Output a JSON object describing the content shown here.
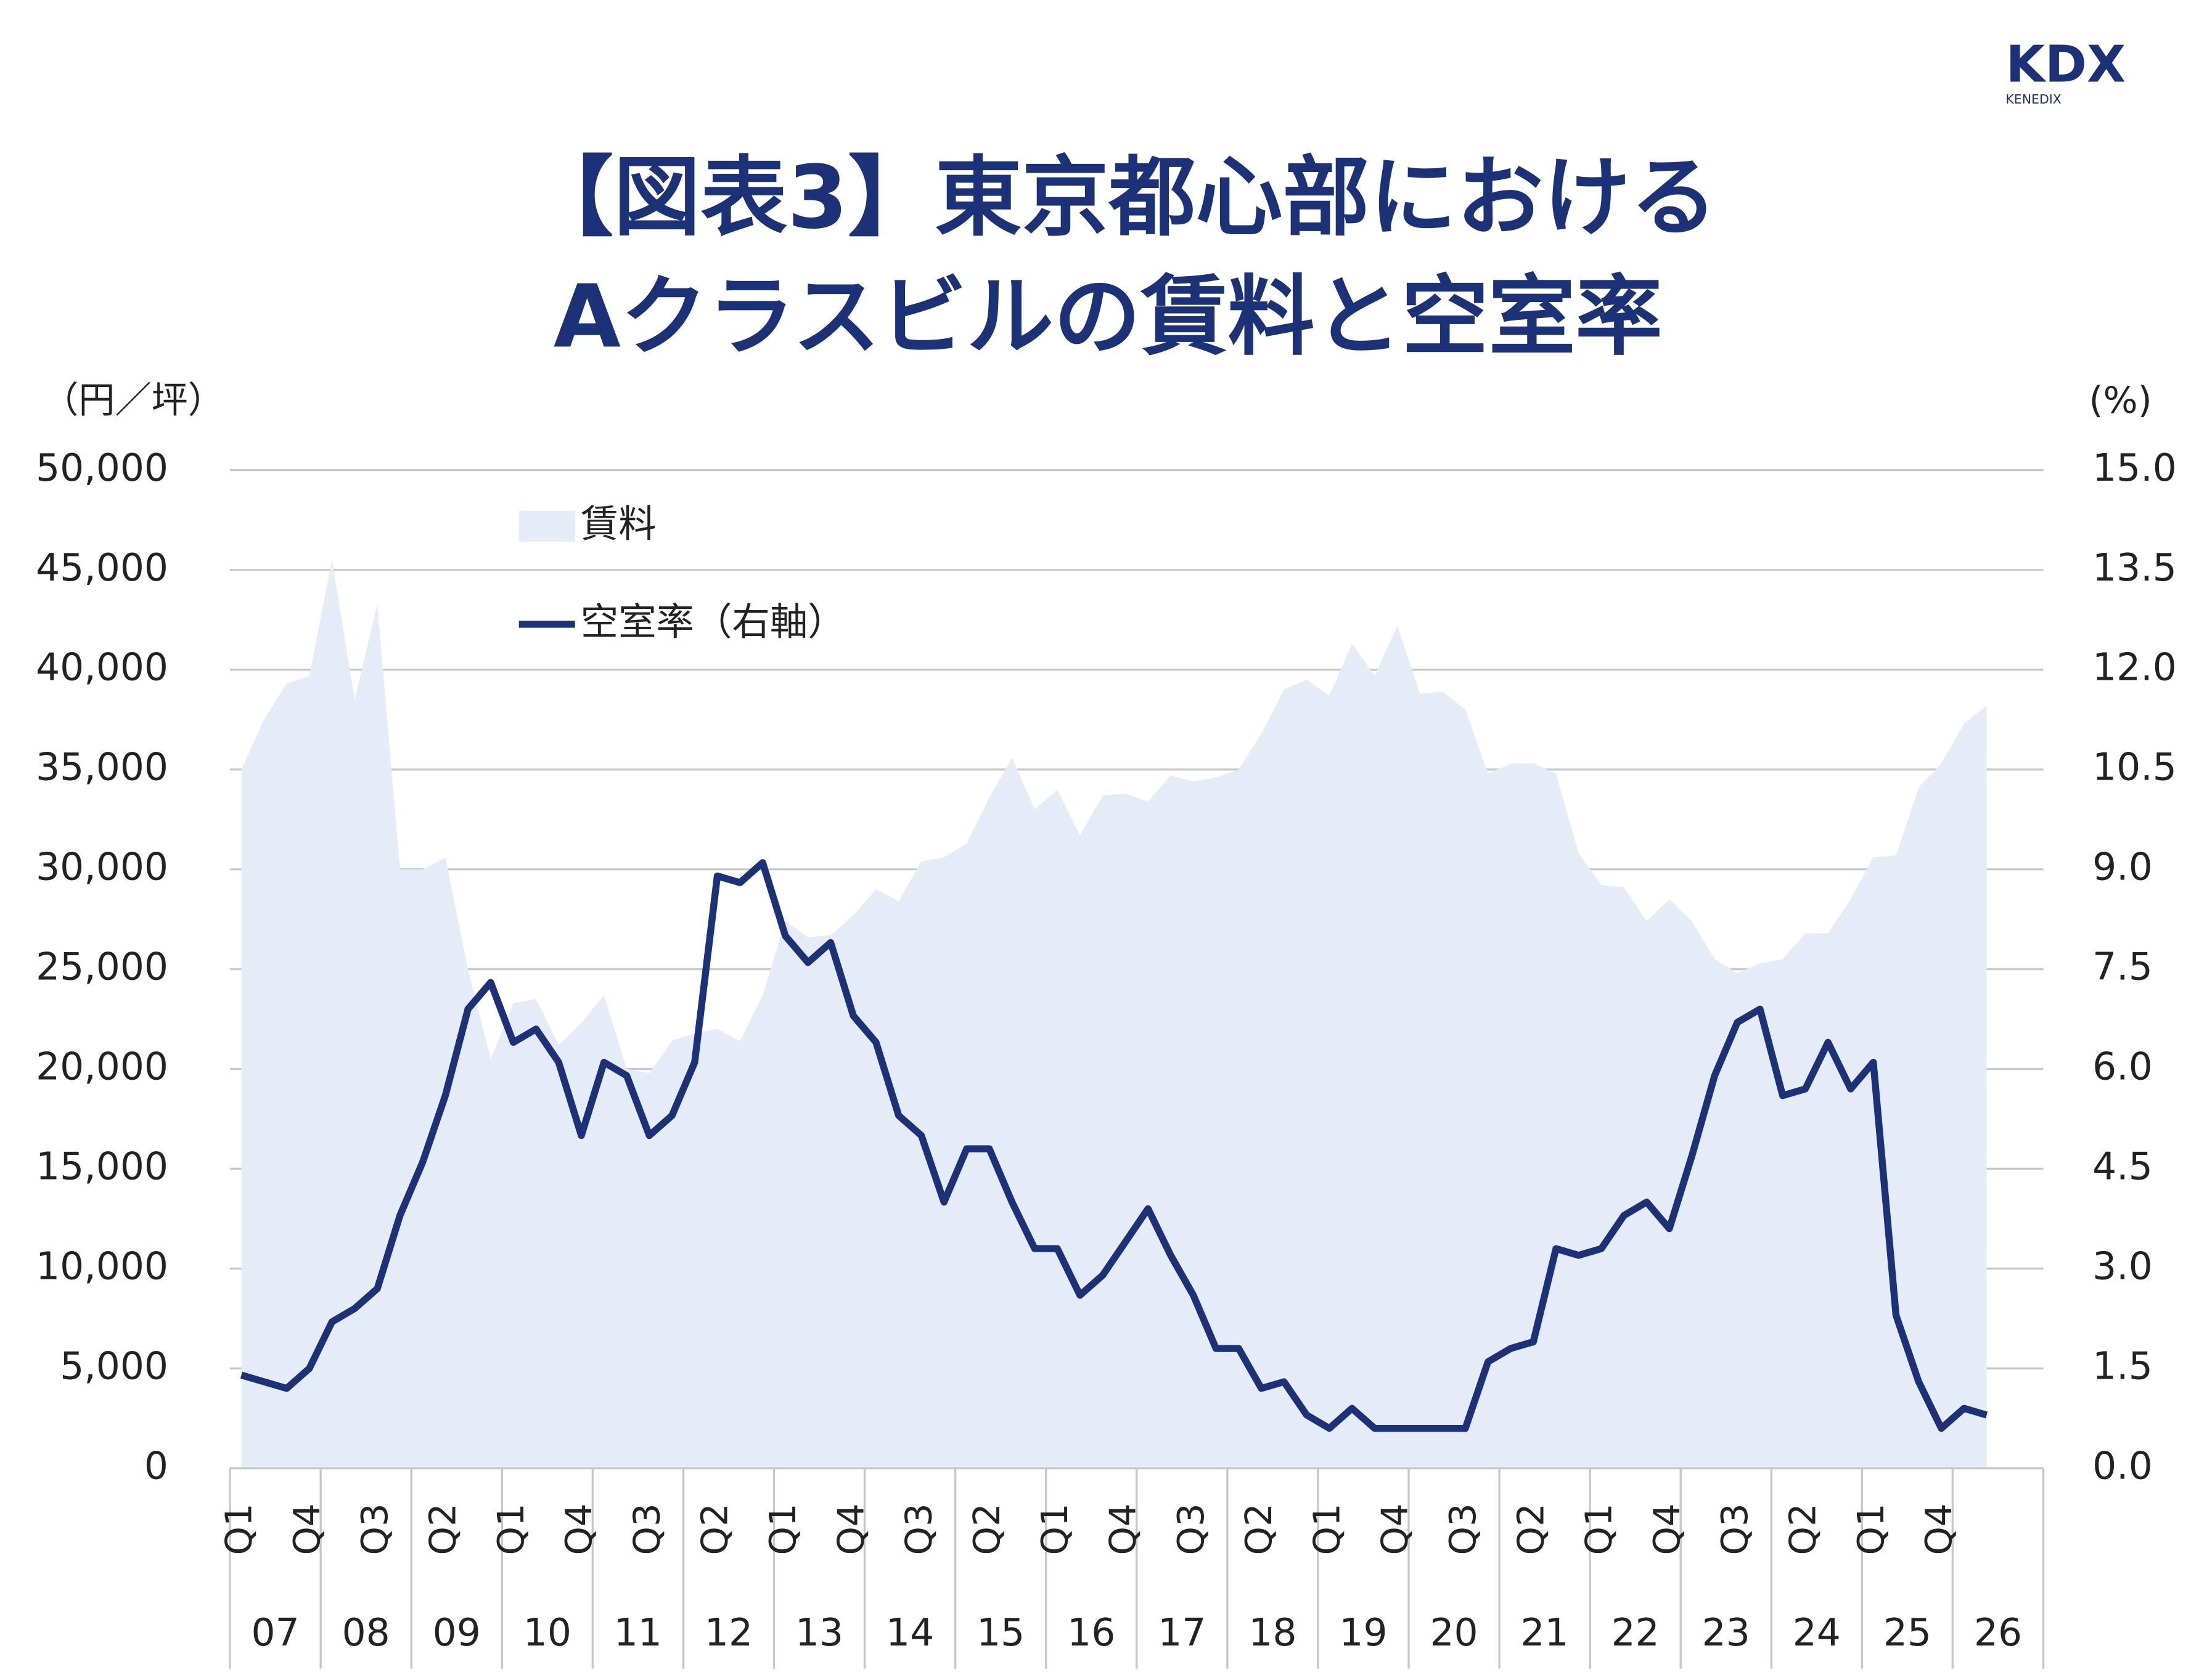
{
  "logo": {
    "brand": "KDX",
    "sub": "KENEDIX"
  },
  "chart_data": {
    "type": "combo",
    "title": [
      "【図表3】東京都心部における",
      "Aクラスビルの賃料と空室率"
    ],
    "y_label": "（円／坪）",
    "y2_label": "(%)",
    "categories": [
      "Q1",
      null,
      null,
      "Q4",
      null,
      null,
      "Q3",
      null,
      null,
      "Q2",
      null,
      null,
      "Q1",
      null,
      null,
      "Q4",
      null,
      null,
      "Q3",
      null,
      null,
      "Q2",
      null,
      null,
      "Q1",
      null,
      null,
      "Q4",
      null,
      null,
      "Q3",
      null,
      null,
      "Q2",
      null,
      null,
      "Q1",
      null,
      null,
      "Q4",
      null,
      null,
      "Q3",
      null,
      null,
      "Q2",
      null,
      null,
      "Q1",
      null,
      null,
      "Q4",
      null,
      null,
      "Q3",
      null,
      null,
      "Q2",
      null,
      null,
      "Q1",
      null,
      null,
      "Q4",
      null,
      null,
      "Q3",
      null,
      null,
      "Q2",
      null,
      null,
      "Q1",
      null,
      null,
      "Q4",
      null,
      null,
      null,
      null
    ],
    "years": [
      "07",
      "08",
      "09",
      "10",
      "11",
      "12",
      "13",
      "14",
      "15",
      "16",
      "17",
      "18",
      "19",
      "20",
      "21",
      "22",
      "23",
      "24",
      "25",
      "26"
    ],
    "series": [
      {
        "name": "賃料",
        "type": "area",
        "color": "#e6ebf8",
        "values": [
          35000,
          37500,
          39300,
          39700,
          45500,
          38500,
          43300,
          30000,
          30000,
          30600,
          25000,
          20500,
          23300,
          23500,
          21200,
          22300,
          23700,
          20000,
          19800,
          21400,
          21800,
          22000,
          21400,
          23700,
          27400,
          26600,
          26700,
          27700,
          29000,
          28400,
          30400,
          30600,
          31300,
          33600,
          35600,
          33000,
          34000,
          31700,
          33700,
          33800,
          33400,
          34700,
          34400,
          34600,
          35000,
          36800,
          39000,
          39500,
          38700,
          41300,
          39700,
          42200,
          38800,
          38900,
          38000,
          34800,
          35300,
          35300,
          34800,
          30800,
          29200,
          29100,
          27400,
          28500,
          27400,
          25500,
          24800,
          25300,
          25500,
          26800,
          26800,
          28500,
          30600,
          30700,
          34100,
          35300,
          37300,
          38200,
          null,
          null
        ]
      },
      {
        "name": "空室率（右軸）",
        "type": "line",
        "axis": "y2",
        "color": "#1b3278",
        "values": [
          1.4,
          1.3,
          1.2,
          1.5,
          2.2,
          2.4,
          2.7,
          3.8,
          4.6,
          5.6,
          6.9,
          7.3,
          6.4,
          6.6,
          6.1,
          5.0,
          6.1,
          5.9,
          5.0,
          5.3,
          6.1,
          8.9,
          8.8,
          9.1,
          8.0,
          7.6,
          7.9,
          6.8,
          6.4,
          5.3,
          5.0,
          4.0,
          4.8,
          4.8,
          4.0,
          3.3,
          3.3,
          2.6,
          2.9,
          3.4,
          3.9,
          3.2,
          2.6,
          1.8,
          1.8,
          1.2,
          1.3,
          0.8,
          0.6,
          0.9,
          0.6,
          0.6,
          0.6,
          0.6,
          0.6,
          1.6,
          1.8,
          1.9,
          3.3,
          3.2,
          3.3,
          3.8,
          4.0,
          3.6,
          4.7,
          5.9,
          6.7,
          6.9,
          5.6,
          5.7,
          6.4,
          5.7,
          6.1,
          2.3,
          1.3,
          0.6,
          0.9,
          0.8,
          null,
          null
        ]
      }
    ],
    "ylim": [
      0,
      50000
    ],
    "yticks": [
      0,
      {
        "value": 5000,
        "label": "5,000"
      },
      {
        "value": 10000,
        "label": "10,000"
      },
      {
        "value": 15000,
        "label": "15,000"
      },
      {
        "value": 20000,
        "label": "20,000"
      },
      {
        "value": 25000,
        "label": "25,000"
      },
      {
        "value": 30000,
        "label": "30,000"
      },
      {
        "value": 35000,
        "label": "35,000"
      },
      {
        "value": 40000,
        "label": "40,000"
      },
      {
        "value": 45000,
        "label": "45,000"
      },
      {
        "value": 50000,
        "label": "50,000"
      }
    ],
    "y2lim": [
      0,
      15
    ],
    "y2ticks": [
      {
        "value": 0,
        "label": "0.0"
      },
      1.5,
      {
        "value": 3,
        "label": "3.0"
      },
      4.5,
      {
        "value": 6,
        "label": "6.0"
      },
      7.5,
      {
        "value": 9,
        "label": "9.0"
      },
      10.5,
      {
        "value": 12,
        "label": "12.0"
      },
      13.5,
      {
        "value": 15,
        "label": "15.0"
      }
    ],
    "grid": true
  }
}
